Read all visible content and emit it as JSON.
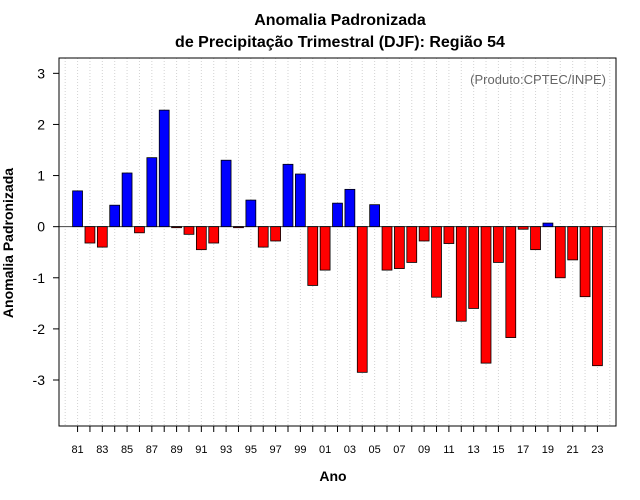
{
  "chart_data": {
    "type": "bar",
    "title_line1": "Anomalia Padronizada",
    "title_line2": "de Precipitação Trimestral (DJF): Região 54",
    "credit": "(Produto:CPTEC/INPE)",
    "xlabel": "Ano",
    "ylabel": "Anomalia Padronizada",
    "ylim": [
      -3.9,
      3.3
    ],
    "yticks": [
      -3,
      -2,
      -1,
      0,
      1,
      2,
      3
    ],
    "xlim": [
      1979.5,
      2024.5
    ],
    "grid": "vertical dotted",
    "categories": [
      1981,
      1982,
      1983,
      1984,
      1985,
      1986,
      1987,
      1988,
      1989,
      1990,
      1991,
      1992,
      1993,
      1994,
      1995,
      1996,
      1997,
      1998,
      1999,
      2000,
      2001,
      2002,
      2003,
      2004,
      2005,
      2006,
      2007,
      2008,
      2009,
      2010,
      2011,
      2012,
      2013,
      2014,
      2015,
      2016,
      2017,
      2018,
      2019,
      2020,
      2021,
      2022,
      2023
    ],
    "xtick_years": [
      1981,
      1983,
      1985,
      1987,
      1989,
      1991,
      1993,
      1995,
      1997,
      1999,
      2001,
      2003,
      2005,
      2007,
      2009,
      2011,
      2013,
      2015,
      2017,
      2019,
      2021,
      2023
    ],
    "xtick_labels": [
      "81",
      "83",
      "85",
      "87",
      "89",
      "91",
      "93",
      "95",
      "97",
      "99",
      "01",
      "03",
      "05",
      "07",
      "09",
      "11",
      "13",
      "15",
      "17",
      "19",
      "21",
      "23"
    ],
    "values": [
      0.7,
      -0.32,
      -0.4,
      0.42,
      1.05,
      -0.12,
      1.35,
      2.28,
      -0.02,
      -0.15,
      -0.45,
      -0.32,
      1.3,
      -0.02,
      0.52,
      -0.4,
      -0.28,
      1.22,
      1.03,
      -1.15,
      -0.85,
      0.46,
      0.73,
      -2.85,
      0.43,
      -0.85,
      -0.82,
      -0.7,
      -0.28,
      -1.38,
      -0.33,
      -1.85,
      -1.6,
      -2.67,
      -0.7,
      -2.17,
      -0.05,
      -0.45,
      0.07,
      -1.0,
      -0.65,
      -1.37,
      -2.72
    ],
    "colors": {
      "positive": "#0000ff",
      "negative": "#ff0000",
      "zero_line": "#444444",
      "grid": "#d3d3d3"
    }
  }
}
